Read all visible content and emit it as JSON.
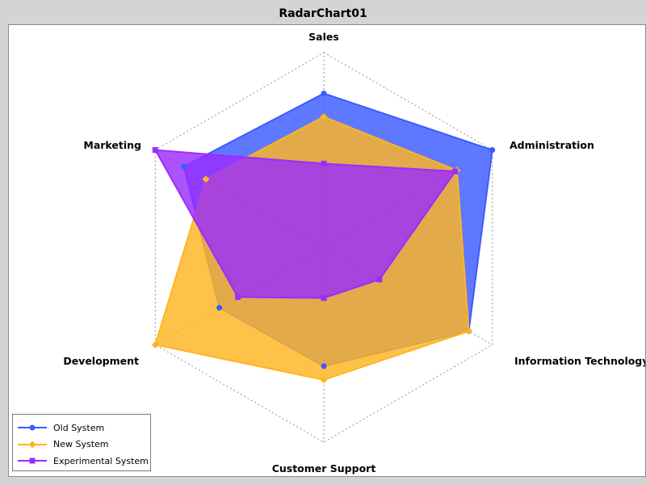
{
  "chart_data": {
    "type": "radar",
    "title": "RadarChart01",
    "categories": [
      "Sales",
      "Administration",
      "Information Technology",
      "Customer Support",
      "Development",
      "Marketing"
    ],
    "max": 100,
    "grid": true,
    "legend_position": "bottom-left",
    "series": [
      {
        "name": "Old System",
        "color": "#3a5cff",
        "marker": "circle",
        "values": [
          79,
          100,
          86,
          61,
          62,
          83
        ]
      },
      {
        "name": "New System",
        "color": "#ffb521",
        "marker": "diamond",
        "values": [
          67,
          79,
          86,
          68,
          100,
          70
        ]
      },
      {
        "name": "Experimental System",
        "color": "#9b2cff",
        "marker": "square",
        "values": [
          43,
          78,
          33,
          26,
          51,
          100
        ]
      }
    ]
  }
}
